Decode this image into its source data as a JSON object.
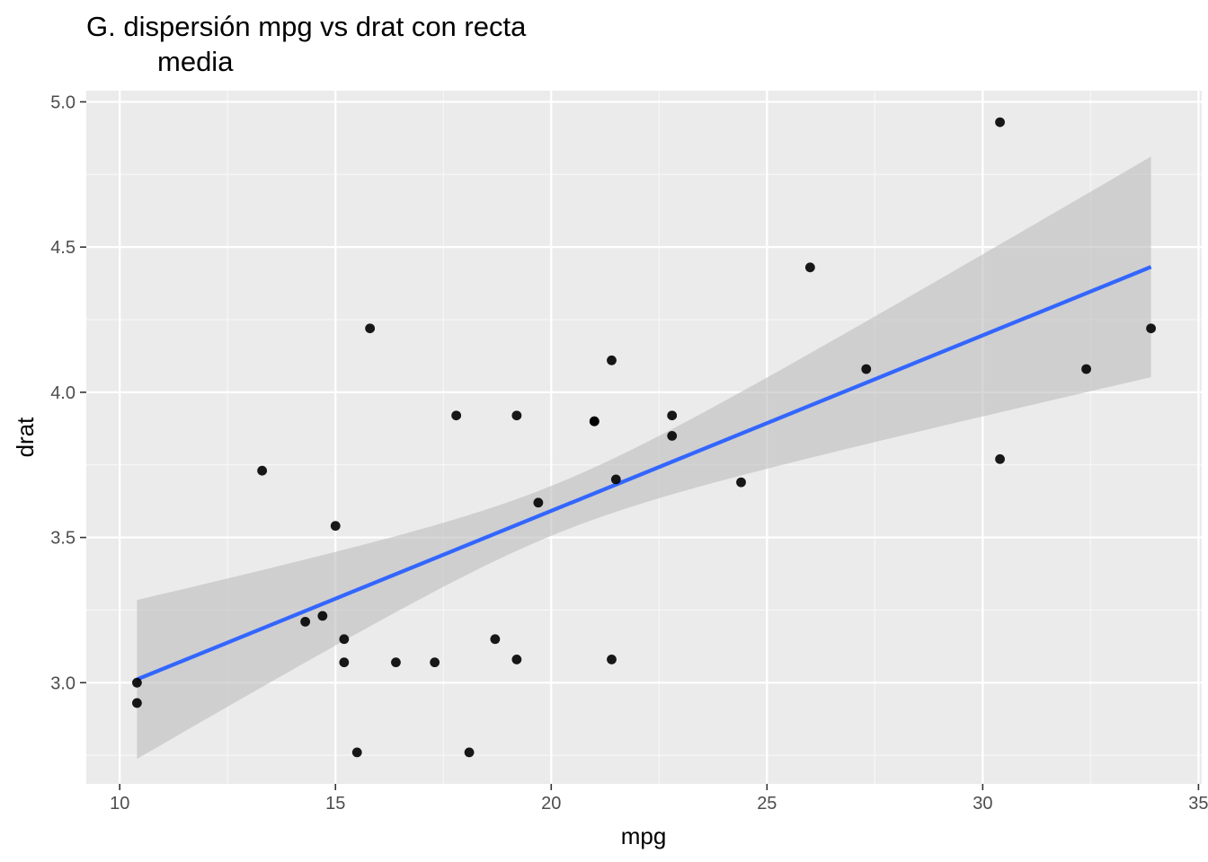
{
  "chart_data": {
    "type": "scatter",
    "title_lines": [
      "G. dispersión mpg vs drat con recta",
      "media"
    ],
    "xlabel": "mpg",
    "ylabel": "drat",
    "xlim": [
      9.225,
      35.075
    ],
    "ylim": [
      2.6515,
      5.0385
    ],
    "x_ticks": [
      10,
      15,
      20,
      25,
      30,
      35
    ],
    "x_tick_labels": [
      "10",
      "15",
      "20",
      "25",
      "30",
      "35"
    ],
    "y_ticks": [
      3.0,
      3.5,
      4.0,
      4.5,
      5.0
    ],
    "y_tick_labels": [
      "3.0",
      "3.5",
      "4.0",
      "4.5",
      "5.0"
    ],
    "grid": true,
    "legend": "none",
    "points": [
      {
        "x": 21.0,
        "y": 3.9
      },
      {
        "x": 21.0,
        "y": 3.9
      },
      {
        "x": 22.8,
        "y": 3.85
      },
      {
        "x": 21.4,
        "y": 3.08
      },
      {
        "x": 18.7,
        "y": 3.15
      },
      {
        "x": 18.1,
        "y": 2.76
      },
      {
        "x": 14.3,
        "y": 3.21
      },
      {
        "x": 24.4,
        "y": 3.69
      },
      {
        "x": 22.8,
        "y": 3.92
      },
      {
        "x": 19.2,
        "y": 3.92
      },
      {
        "x": 17.8,
        "y": 3.92
      },
      {
        "x": 16.4,
        "y": 3.07
      },
      {
        "x": 17.3,
        "y": 3.07
      },
      {
        "x": 15.2,
        "y": 3.07
      },
      {
        "x": 10.4,
        "y": 2.93
      },
      {
        "x": 10.4,
        "y": 3.0
      },
      {
        "x": 14.7,
        "y": 3.23
      },
      {
        "x": 32.4,
        "y": 4.08
      },
      {
        "x": 30.4,
        "y": 4.93
      },
      {
        "x": 33.9,
        "y": 4.22
      },
      {
        "x": 21.5,
        "y": 3.7
      },
      {
        "x": 15.5,
        "y": 2.76
      },
      {
        "x": 15.2,
        "y": 3.15
      },
      {
        "x": 13.3,
        "y": 3.73
      },
      {
        "x": 19.2,
        "y": 3.08
      },
      {
        "x": 27.3,
        "y": 4.08
      },
      {
        "x": 26.0,
        "y": 4.43
      },
      {
        "x": 30.4,
        "y": 3.77
      },
      {
        "x": 15.8,
        "y": 4.22
      },
      {
        "x": 19.7,
        "y": 3.62
      },
      {
        "x": 15.0,
        "y": 3.54
      },
      {
        "x": 21.4,
        "y": 4.11
      }
    ],
    "smooth": {
      "method": "lm",
      "color": "#3366FF",
      "x_range": [
        10.4,
        33.9
      ],
      "intercept": 2.38249,
      "slope": 0.06045,
      "mean_x": 20.090625,
      "ci_half_width_at_mean": 0.0858,
      "ci_half_width_at_min": 0.2735,
      "se_fill": "#bdbdbd"
    },
    "colors": {
      "panel_background": "#EBEBEB",
      "grid_major": "#FFFFFF",
      "grid_minor": "#F7F7F7",
      "point": "#000000",
      "tick_text": "#4D4D4D"
    }
  }
}
